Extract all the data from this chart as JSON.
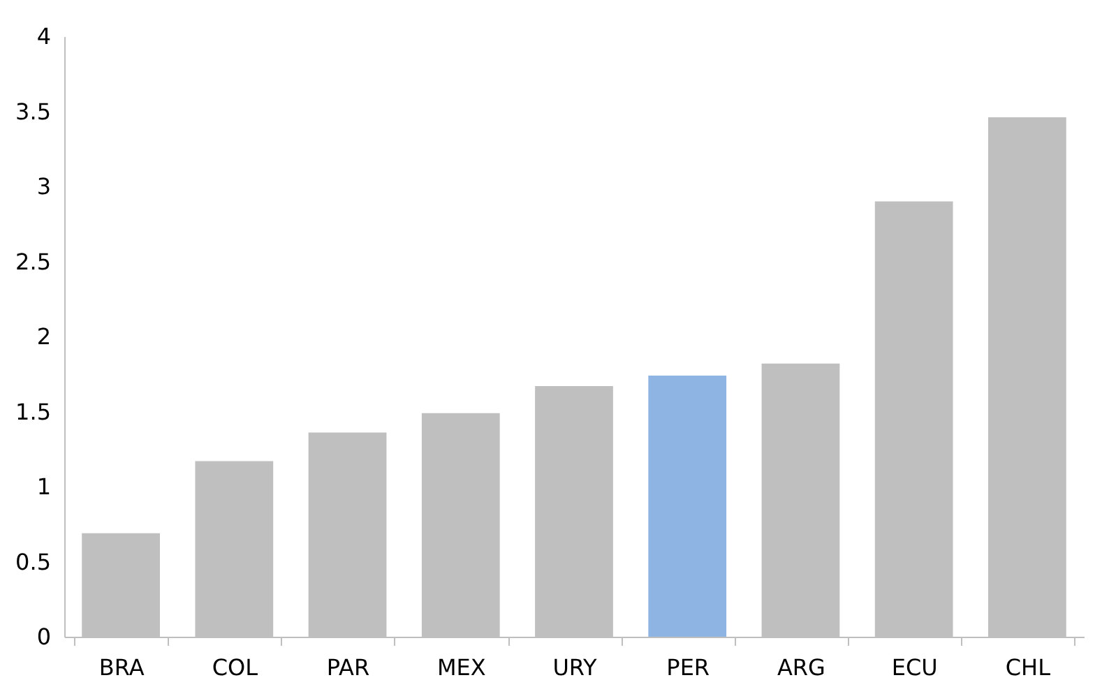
{
  "chart_data": {
    "type": "bar",
    "categories": [
      "BRA",
      "COL",
      "PAR",
      "MEX",
      "URY",
      "PER",
      "ARG",
      "ECU",
      "CHL"
    ],
    "values": [
      0.69,
      1.17,
      1.36,
      1.49,
      1.67,
      1.74,
      1.82,
      2.9,
      3.46
    ],
    "colors": [
      "#bfbfbf",
      "#bfbfbf",
      "#bfbfbf",
      "#bfbfbf",
      "#bfbfbf",
      "#8eb4e3",
      "#bfbfbf",
      "#bfbfbf",
      "#bfbfbf"
    ],
    "ylim": [
      0,
      4
    ],
    "yticks": [
      0,
      0.5,
      1,
      1.5,
      2,
      2.5,
      3,
      3.5,
      4
    ],
    "grid": false
  }
}
